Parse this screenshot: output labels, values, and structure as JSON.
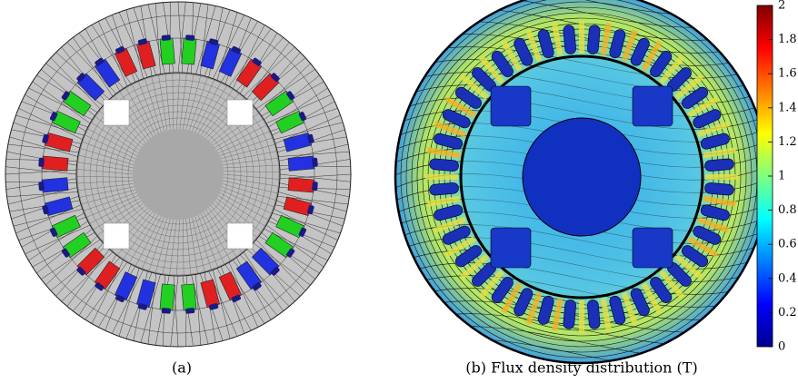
{
  "figure": {
    "panels": [
      {
        "caption": "(a)"
      },
      {
        "caption": "(b) Flux density distribution (T)"
      }
    ],
    "colorbar": {
      "lim": [
        0,
        2
      ],
      "ticks": [
        0,
        0.2,
        0.4,
        0.6,
        0.8,
        1,
        1.2,
        1.4,
        1.6,
        1.8,
        2
      ]
    }
  }
}
